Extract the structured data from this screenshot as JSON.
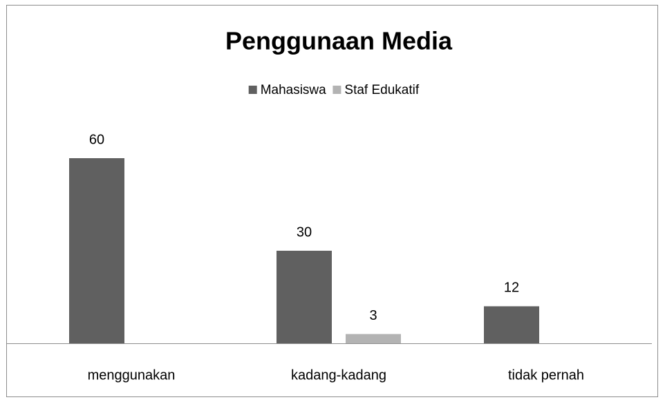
{
  "chart_data": {
    "type": "bar",
    "title": "Penggunaan Media",
    "categories": [
      "menggunakan",
      "kadang-kadang",
      "tidak pernah"
    ],
    "series": [
      {
        "name": "Mahasiswa",
        "color": "#606060",
        "values": [
          60,
          30,
          12
        ]
      },
      {
        "name": "Staf Edukatif",
        "color": "#b3b3b3",
        "values": [
          null,
          3,
          null
        ]
      }
    ],
    "legend": "top"
  }
}
